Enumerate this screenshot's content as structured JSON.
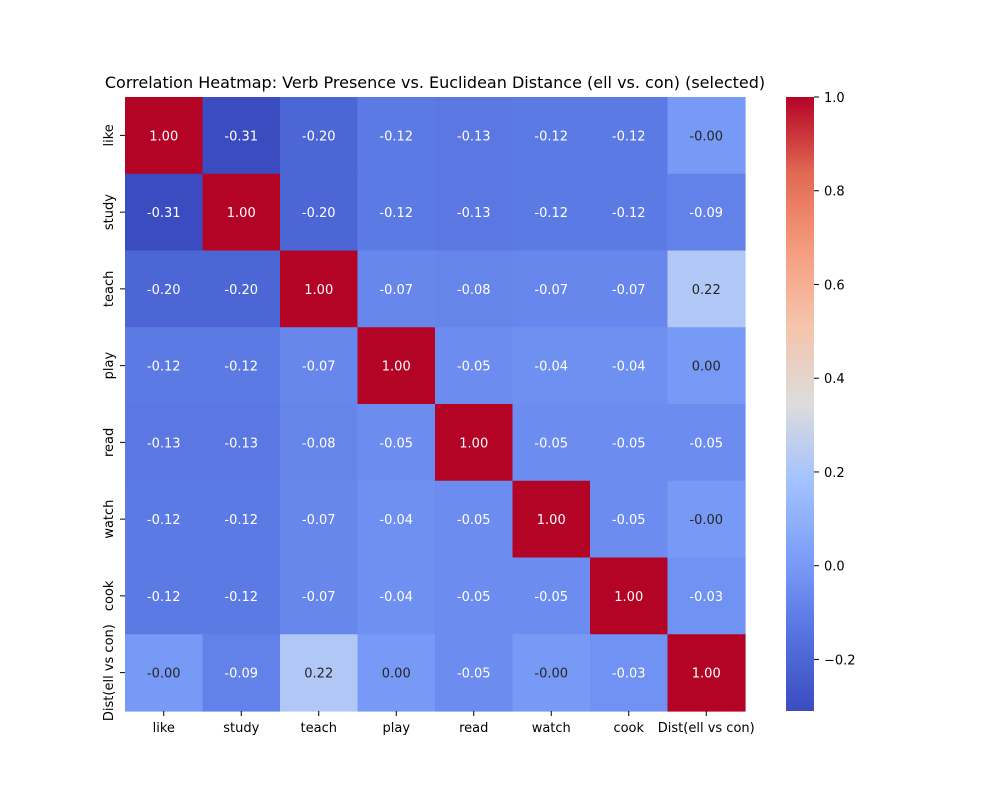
{
  "chart_data": {
    "type": "heatmap",
    "title": "Correlation Heatmap: Verb Presence vs. Euclidean Distance (ell vs. con) (selected)",
    "xlabel": "",
    "ylabel": "",
    "x_categories": [
      "like",
      "study",
      "teach",
      "play",
      "read",
      "watch",
      "cook",
      "Dist(ell vs con)"
    ],
    "y_categories": [
      "like",
      "study",
      "teach",
      "play",
      "read",
      "watch",
      "cook",
      "Dist(ell vs con)"
    ],
    "values": [
      [
        1.0,
        -0.31,
        -0.2,
        -0.12,
        -0.13,
        -0.12,
        -0.12,
        -0.0
      ],
      [
        -0.31,
        1.0,
        -0.2,
        -0.12,
        -0.13,
        -0.12,
        -0.12,
        -0.09
      ],
      [
        -0.2,
        -0.2,
        1.0,
        -0.07,
        -0.08,
        -0.07,
        -0.07,
        0.22
      ],
      [
        -0.12,
        -0.12,
        -0.07,
        1.0,
        -0.05,
        -0.04,
        -0.04,
        0.0
      ],
      [
        -0.13,
        -0.13,
        -0.08,
        -0.05,
        1.0,
        -0.05,
        -0.05,
        -0.05
      ],
      [
        -0.12,
        -0.12,
        -0.07,
        -0.04,
        -0.05,
        1.0,
        -0.05,
        -0.0
      ],
      [
        -0.12,
        -0.12,
        -0.07,
        -0.04,
        -0.05,
        -0.05,
        1.0,
        -0.03
      ],
      [
        -0.0,
        -0.09,
        0.22,
        0.0,
        -0.05,
        -0.0,
        -0.03,
        1.0
      ]
    ],
    "cell_labels": [
      [
        "1.00",
        "-0.31",
        "-0.20",
        "-0.12",
        "-0.13",
        "-0.12",
        "-0.12",
        "-0.00"
      ],
      [
        "-0.31",
        "1.00",
        "-0.20",
        "-0.12",
        "-0.13",
        "-0.12",
        "-0.12",
        "-0.09"
      ],
      [
        "-0.20",
        "-0.20",
        "1.00",
        "-0.07",
        "-0.08",
        "-0.07",
        "-0.07",
        "0.22"
      ],
      [
        "-0.12",
        "-0.12",
        "-0.07",
        "1.00",
        "-0.05",
        "-0.04",
        "-0.04",
        "0.00"
      ],
      [
        "-0.13",
        "-0.13",
        "-0.08",
        "-0.05",
        "1.00",
        "-0.05",
        "-0.05",
        "-0.05"
      ],
      [
        "-0.12",
        "-0.12",
        "-0.07",
        "-0.04",
        "-0.05",
        "1.00",
        "-0.05",
        "-0.00"
      ],
      [
        "-0.12",
        "-0.12",
        "-0.07",
        "-0.04",
        "-0.05",
        "-0.05",
        "1.00",
        "-0.03"
      ],
      [
        "-0.00",
        "-0.09",
        "0.22",
        "0.00",
        "-0.05",
        "-0.00",
        "-0.03",
        "1.00"
      ]
    ],
    "colormap": "coolwarm",
    "color_range": [
      -0.31,
      1.0
    ],
    "colorbar_ticks": [
      -0.2,
      0.0,
      0.2,
      0.4,
      0.6,
      0.8,
      1.0
    ],
    "colorbar_tick_labels": [
      "−0.2",
      "0.0",
      "0.2",
      "0.4",
      "0.6",
      "0.8",
      "1.0"
    ],
    "grid": false,
    "legend": "colorbar-right"
  }
}
